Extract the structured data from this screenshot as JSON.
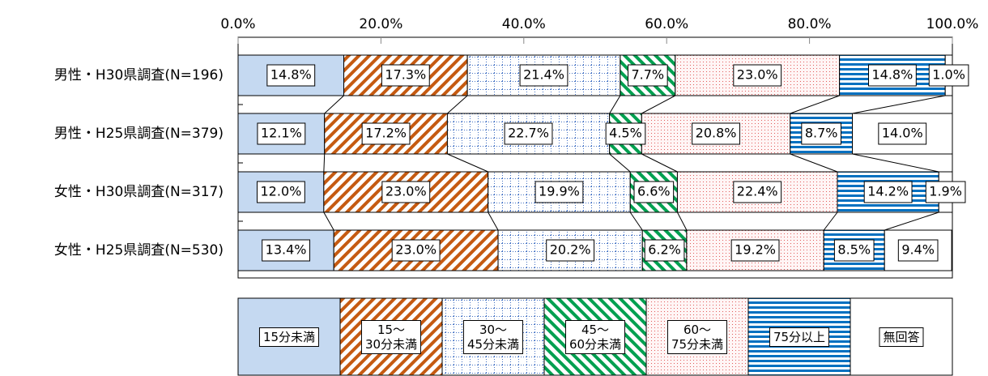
{
  "chart_data": {
    "type": "stacked_bar_100",
    "orientation": "horizontal",
    "categories": [
      "男性・H30県調査(N=196)",
      "男性・H25県調査(N=379)",
      "女性・H30県調査(N=317)",
      "女性・H25県調査(N=530)"
    ],
    "xlim": [
      0,
      100
    ],
    "xticks": [
      {
        "value": 0,
        "label": "0.0%"
      },
      {
        "value": 20,
        "label": "20.0%"
      },
      {
        "value": 40,
        "label": "40.0%"
      },
      {
        "value": 60,
        "label": "60.0%"
      },
      {
        "value": 80,
        "label": "80.0%"
      },
      {
        "value": 100,
        "label": "100.0%"
      }
    ],
    "legend": "bottom",
    "series_lines": true,
    "series": [
      {
        "name": "15分未満",
        "color": "#c5d9f1",
        "pattern": "solid",
        "values": [
          14.8,
          12.1,
          12.0,
          13.4
        ],
        "value_labels": [
          "14.8%",
          "12.1%",
          "12.0%",
          "13.4%"
        ]
      },
      {
        "name": "15～\n30分未満",
        "color": "#c55a11",
        "pattern": "diagonal-up",
        "values": [
          17.3,
          17.2,
          23.0,
          23.0
        ],
        "value_labels": [
          "17.3%",
          "17.2%",
          "23.0%",
          "23.0%"
        ]
      },
      {
        "name": "30～\n45分未満",
        "color": "#4472c4",
        "pattern": "dotted-grid",
        "values": [
          21.4,
          22.7,
          19.9,
          20.2
        ],
        "value_labels": [
          "21.4%",
          "22.7%",
          "19.9%",
          "20.2%"
        ]
      },
      {
        "name": "45～\n60分未満",
        "color": "#00a050",
        "pattern": "diagonal-down",
        "values": [
          7.7,
          4.5,
          6.6,
          6.2
        ],
        "value_labels": [
          "7.7%",
          "4.5%",
          "6.6%",
          "6.2%"
        ]
      },
      {
        "name": "60～\n75分未満",
        "color": "#e05a5a",
        "pattern": "dots",
        "values": [
          23.0,
          20.8,
          22.4,
          19.2
        ],
        "value_labels": [
          "23.0%",
          "20.8%",
          "22.4%",
          "19.2%"
        ]
      },
      {
        "name": "75分以上",
        "color": "#0070c0",
        "pattern": "horizontal",
        "values": [
          14.8,
          8.7,
          14.2,
          8.5
        ],
        "value_labels": [
          "14.8%",
          "8.7%",
          "14.2%",
          "8.5%"
        ]
      },
      {
        "name": "無回答",
        "color": "#ffffff",
        "pattern": "solid",
        "values": [
          1.0,
          14.0,
          1.9,
          9.4
        ],
        "value_labels": [
          "1.0%",
          "14.0%",
          "1.9%",
          "9.4%"
        ]
      }
    ]
  }
}
